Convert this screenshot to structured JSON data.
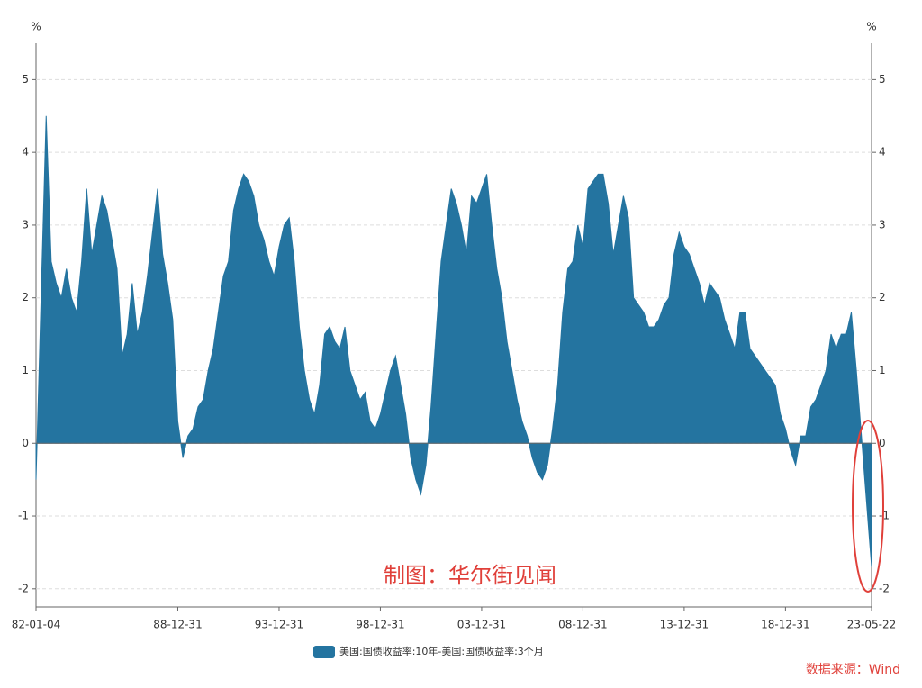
{
  "chart_data": {
    "type": "area",
    "y_unit": "%",
    "y2_unit": "%",
    "watermark": "制图：华尔街见闻",
    "source": "数据来源：Wind",
    "categories": [
      "82-01-04",
      null,
      null,
      null,
      null,
      null,
      null,
      null,
      null,
      null,
      null,
      null,
      null,
      null,
      null,
      null,
      null,
      null,
      null,
      null,
      null,
      null,
      null,
      null,
      null,
      null,
      null,
      null,
      "88-12-31",
      null,
      null,
      null,
      null,
      null,
      null,
      null,
      null,
      null,
      null,
      null,
      null,
      null,
      null,
      null,
      null,
      null,
      null,
      null,
      "93-12-31",
      null,
      null,
      null,
      null,
      null,
      null,
      null,
      null,
      null,
      null,
      null,
      null,
      null,
      null,
      null,
      null,
      null,
      null,
      null,
      "98-12-31",
      null,
      null,
      null,
      null,
      null,
      null,
      null,
      null,
      null,
      null,
      null,
      null,
      null,
      null,
      null,
      null,
      null,
      null,
      null,
      "03-12-31",
      null,
      null,
      null,
      null,
      null,
      null,
      null,
      null,
      null,
      null,
      null,
      null,
      null,
      null,
      null,
      null,
      null,
      null,
      null,
      "08-12-31",
      null,
      null,
      null,
      null,
      null,
      null,
      null,
      null,
      null,
      null,
      null,
      null,
      null,
      null,
      null,
      null,
      null,
      null,
      null,
      "13-12-31",
      null,
      null,
      null,
      null,
      null,
      null,
      null,
      null,
      null,
      null,
      null,
      null,
      null,
      null,
      null,
      null,
      null,
      null,
      null,
      "18-12-31",
      null,
      null,
      null,
      null,
      null,
      null,
      null,
      null,
      null,
      null,
      null,
      null,
      null,
      null,
      null,
      null,
      "23-05-22"
    ],
    "series": [
      {
        "name": "美国:国债收益率:10年-美国:国债收益率:3个月",
        "color": "#2474a0",
        "values": [
          -0.5,
          2.0,
          4.5,
          2.5,
          2.2,
          2.0,
          2.4,
          2.0,
          1.8,
          2.5,
          3.5,
          2.6,
          3.0,
          3.4,
          3.2,
          2.8,
          2.4,
          1.2,
          1.5,
          2.2,
          1.5,
          1.8,
          2.3,
          2.9,
          3.5,
          2.6,
          2.2,
          1.7,
          0.3,
          -0.2,
          0.1,
          0.2,
          0.5,
          0.6,
          1.0,
          1.3,
          1.8,
          2.3,
          2.5,
          3.2,
          3.5,
          3.7,
          3.6,
          3.4,
          3.0,
          2.8,
          2.5,
          2.3,
          2.7,
          3.0,
          3.1,
          2.5,
          1.6,
          1.0,
          0.6,
          0.4,
          0.8,
          1.5,
          1.6,
          1.4,
          1.3,
          1.6,
          1.0,
          0.8,
          0.6,
          0.7,
          0.3,
          0.2,
          0.4,
          0.7,
          1.0,
          1.2,
          0.8,
          0.4,
          -0.2,
          -0.5,
          -0.7,
          -0.3,
          0.5,
          1.5,
          2.5,
          3.0,
          3.5,
          3.3,
          3.0,
          2.6,
          3.4,
          3.3,
          3.5,
          3.7,
          3.0,
          2.4,
          2.0,
          1.4,
          1.0,
          0.6,
          0.3,
          0.1,
          -0.2,
          -0.4,
          -0.5,
          -0.3,
          0.2,
          0.8,
          1.8,
          2.4,
          2.5,
          3.0,
          2.7,
          3.5,
          3.6,
          3.7,
          3.7,
          3.3,
          2.6,
          3.0,
          3.4,
          3.1,
          2.0,
          1.9,
          1.8,
          1.6,
          1.6,
          1.7,
          1.9,
          2.0,
          2.6,
          2.9,
          2.7,
          2.6,
          2.4,
          2.2,
          1.9,
          2.2,
          2.1,
          2.0,
          1.7,
          1.5,
          1.3,
          1.8,
          1.8,
          1.3,
          1.2,
          1.1,
          1.0,
          0.9,
          0.8,
          0.4,
          0.2,
          -0.1,
          -0.3,
          0.1,
          0.1,
          0.5,
          0.6,
          0.8,
          1.0,
          1.5,
          1.3,
          1.5,
          1.5,
          1.8,
          1.0,
          0.1,
          -0.8,
          -1.7
        ]
      }
    ],
    "ylim": [
      -2.25,
      5.5
    ],
    "yticks": [
      -2,
      -1,
      0,
      1,
      2,
      3,
      4,
      5
    ],
    "y2lim": [
      -2.25,
      5.5
    ],
    "y2ticks": [
      -2,
      -1,
      0,
      1,
      2,
      3,
      4,
      5
    ],
    "grid": true,
    "legend": "bottom"
  }
}
